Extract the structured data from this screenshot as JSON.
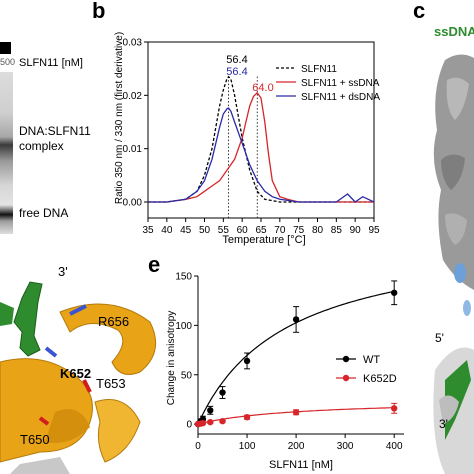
{
  "panel_a": {
    "conc_label": "SLFN11 [nM]",
    "lane_partial": "500",
    "complex_label_line1": "DNA:SLFN11",
    "complex_label_line2": "complex",
    "free_dna_label": "free DNA"
  },
  "panel_b": {
    "letter": "b",
    "ylabel": "Ratio 350 nm / 330 nm (first derivative)",
    "xlabel": "Temperature [°C]",
    "peak_labels": [
      {
        "text": "56.4",
        "color": "#000000"
      },
      {
        "text": "56.4",
        "color": "#2a2aa8"
      },
      {
        "text": "64.0",
        "color": "#d7252a"
      }
    ]
  },
  "panel_c": {
    "letter": "c",
    "title_partial": "ssDNA",
    "label_5prime": "5'",
    "label_3prime": "3'"
  },
  "panel_d": {
    "label_3prime": "3'",
    "residues": [
      "R656",
      "K652",
      "T653",
      "T650"
    ]
  },
  "panel_e": {
    "letter": "e",
    "ylabel": "Change in anisotropy",
    "xlabel": "SLFN11 [nM]"
  },
  "colors": {
    "slfn11": "#000000",
    "ssdna": "#d7252a",
    "dsdna": "#2a2aa8",
    "wt": "#000000",
    "k652d": "#d7252a",
    "protein_gold": "#e8a317",
    "dna_green": "#2e8b2e"
  },
  "chart_data": [
    {
      "type": "line",
      "panel": "b",
      "xlabel": "Temperature [°C]",
      "ylabel": "Ratio 350 nm / 330 nm (first derivative)",
      "xlim": [
        35,
        95
      ],
      "ylim": [
        -0.003,
        0.03
      ],
      "xticks": [
        "35",
        "40",
        "45",
        "50",
        "55",
        "60",
        "65",
        "70",
        "75",
        "80",
        "85",
        "90",
        "95"
      ],
      "yticks": [
        "0.00",
        "0.01",
        "0.02",
        "0.03"
      ],
      "legend_position": "top-right",
      "vlines": [
        56.4,
        64.0
      ],
      "series": [
        {
          "name": "SLFN11",
          "style": "dashed",
          "color": "#000000",
          "x": [
            35,
            40,
            45,
            48,
            50,
            52,
            53,
            54,
            55,
            56,
            56.4,
            57,
            58,
            59,
            60,
            62,
            64,
            66,
            70,
            75,
            80,
            85,
            90,
            93,
            95
          ],
          "y": [
            0.0,
            0.0,
            0.0005,
            0.002,
            0.005,
            0.01,
            0.014,
            0.018,
            0.021,
            0.0232,
            0.0235,
            0.023,
            0.02,
            0.016,
            0.012,
            0.006,
            0.002,
            0.0005,
            0.0,
            0.0,
            0.0,
            0.0,
            0.0,
            0.0,
            0.0
          ]
        },
        {
          "name": "SLFN11 + ssDNA",
          "style": "solid",
          "color": "#d7252a",
          "x": [
            35,
            40,
            45,
            48,
            50,
            52,
            54,
            56,
            58,
            60,
            61,
            62,
            63,
            64,
            65,
            66,
            67,
            68,
            70,
            72,
            75,
            80,
            85,
            90,
            93,
            95
          ],
          "y": [
            0.0,
            0.0,
            0.0005,
            0.001,
            0.002,
            0.003,
            0.004,
            0.006,
            0.008,
            0.012,
            0.015,
            0.018,
            0.0198,
            0.0205,
            0.0195,
            0.015,
            0.009,
            0.004,
            0.001,
            0.0005,
            0.0,
            0.0,
            0.0,
            0.0,
            0.0,
            0.0
          ]
        },
        {
          "name": "SLFN11 + dsDNA",
          "style": "solid",
          "color": "#2a2aa8",
          "x": [
            35,
            40,
            45,
            48,
            50,
            52,
            53,
            54,
            55,
            56,
            56.4,
            57,
            58,
            60,
            62,
            64,
            66,
            68,
            70,
            75,
            80,
            85,
            88,
            90,
            92,
            95
          ],
          "y": [
            0.0,
            0.0,
            0.0005,
            0.002,
            0.004,
            0.008,
            0.011,
            0.014,
            0.0165,
            0.0175,
            0.0176,
            0.017,
            0.015,
            0.011,
            0.007,
            0.004,
            0.002,
            0.001,
            0.0005,
            0.0,
            0.0,
            0.0,
            0.0015,
            0.0,
            0.001,
            0.0
          ]
        }
      ]
    },
    {
      "type": "scatter",
      "panel": "e",
      "xlabel": "SLFN11 [nM]",
      "ylabel": "Change in anisotropy",
      "xlim": [
        0,
        420
      ],
      "ylim": [
        -10,
        150
      ],
      "xticks": [
        "0",
        "100",
        "200",
        "300",
        "400"
      ],
      "yticks": [
        "0",
        "50",
        "100",
        "150"
      ],
      "legend_position": "right",
      "series": [
        {
          "name": "WT",
          "color": "#000000",
          "marker": "circle",
          "x": [
            0,
            5,
            10,
            25,
            50,
            100,
            200,
            400
          ],
          "y": [
            0,
            3,
            5,
            14,
            32,
            64,
            106,
            133
          ],
          "err": [
            1,
            2,
            3,
            4,
            6,
            8,
            13,
            12
          ],
          "fit": {
            "Bmax": 195,
            "Kd": 180
          }
        },
        {
          "name": "K652D",
          "color": "#d7252a",
          "marker": "circle",
          "x": [
            0,
            5,
            10,
            25,
            50,
            100,
            200,
            400
          ],
          "y": [
            0,
            0.5,
            1,
            2,
            3,
            7,
            12,
            16
          ],
          "err": [
            0.5,
            0.5,
            1,
            1,
            1.5,
            2,
            2.5,
            5
          ],
          "fit": {
            "Bmax": 25,
            "Kd": 200
          }
        }
      ]
    }
  ]
}
